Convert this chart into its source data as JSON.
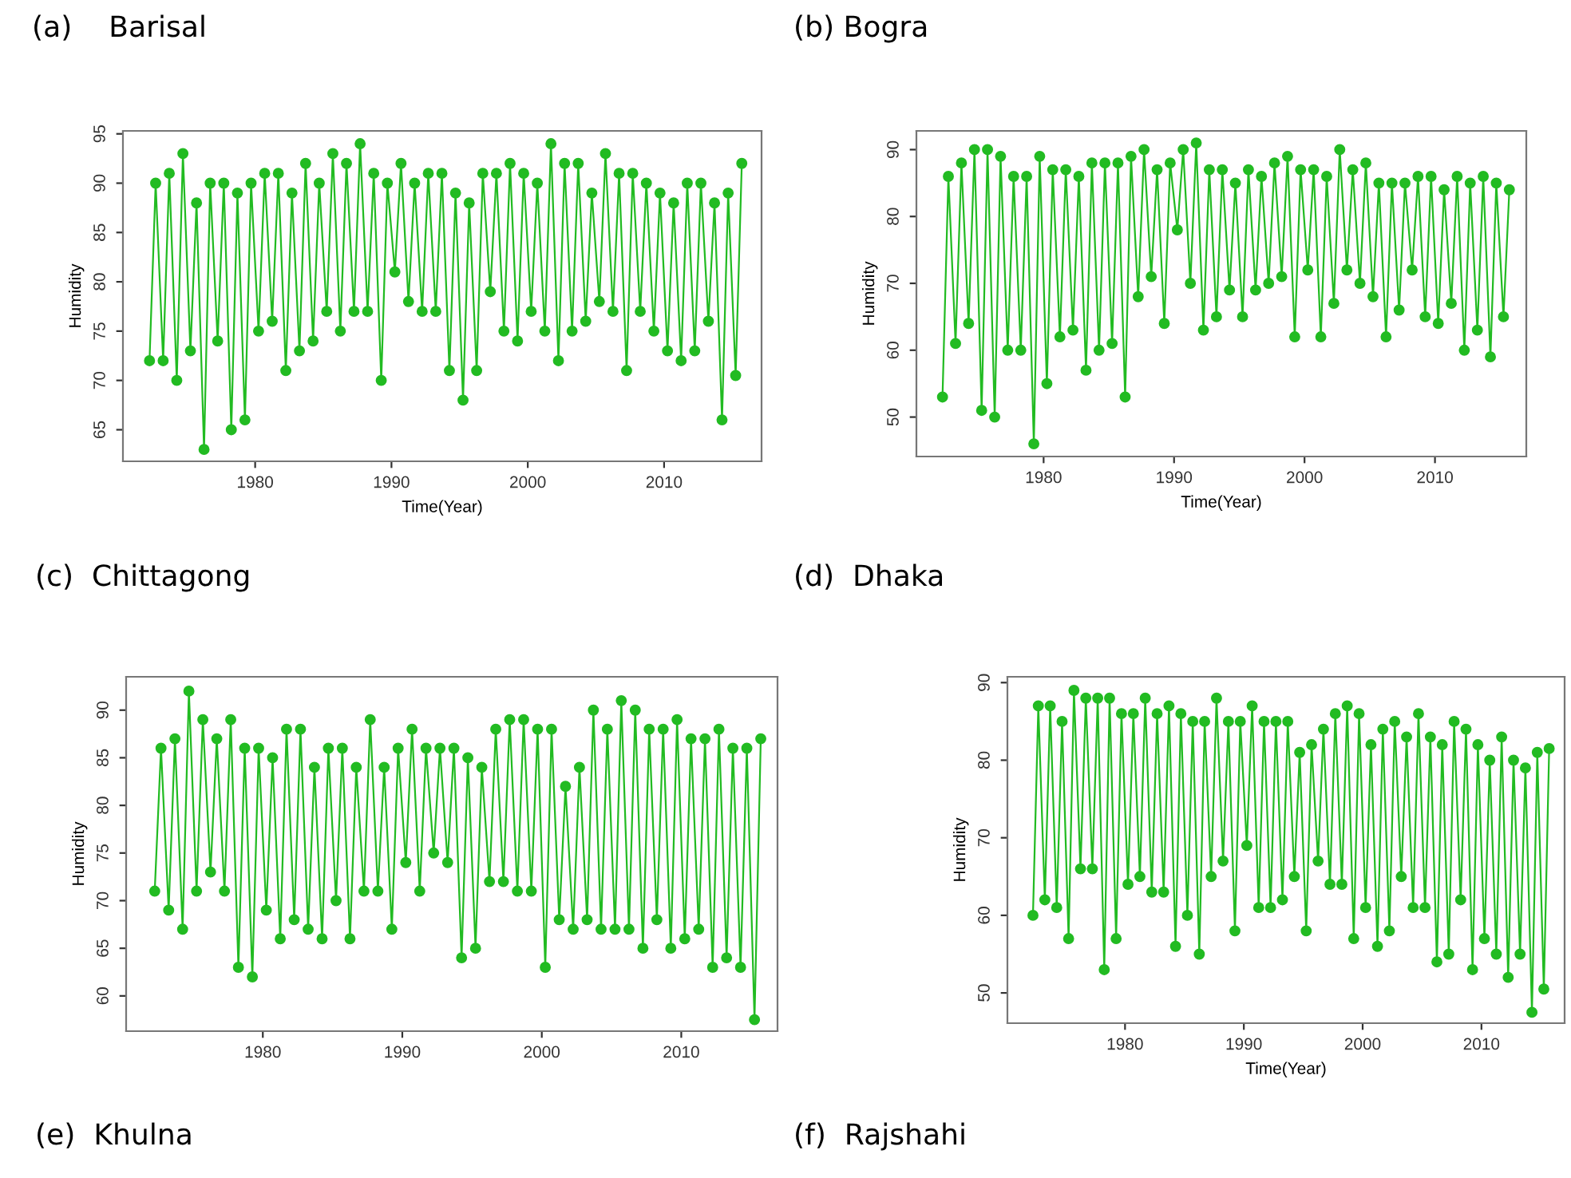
{
  "chart_data": [
    {
      "type": "line",
      "title": "(a)    Barisal",
      "xlabel": "Time(Year)",
      "ylabel": "Humidity",
      "color": "#22bb22",
      "marker": "circle",
      "xlim": [
        1970.3,
        2017.15
      ],
      "ylim": [
        61.8,
        95.3
      ],
      "xticks": [
        1980,
        1990,
        2000,
        2010
      ],
      "yticks": [
        65,
        70,
        75,
        80,
        85,
        90,
        95
      ],
      "x": [
        1972.25,
        1972.7,
        1973.25,
        1973.7,
        1974.25,
        1974.7,
        1975.25,
        1975.7,
        1976.25,
        1976.7,
        1977.25,
        1977.7,
        1978.25,
        1978.7,
        1979.25,
        1979.7,
        1980.25,
        1980.7,
        1981.25,
        1981.7,
        1982.25,
        1982.7,
        1983.25,
        1983.7,
        1984.25,
        1984.7,
        1985.25,
        1985.7,
        1986.25,
        1986.7,
        1987.25,
        1987.7,
        1988.25,
        1988.7,
        1989.25,
        1989.7,
        1990.25,
        1990.7,
        1991.25,
        1991.7,
        1992.25,
        1992.7,
        1993.25,
        1993.7,
        1994.25,
        1994.7,
        1995.25,
        1995.7,
        1996.25,
        1996.7,
        1997.25,
        1997.7,
        1998.25,
        1998.7,
        1999.25,
        1999.7,
        2000.25,
        2000.7,
        2001.25,
        2001.7,
        2002.25,
        2002.7,
        2003.25,
        2003.7,
        2004.25,
        2004.7,
        2005.25,
        2005.7,
        2006.25,
        2006.7,
        2007.25,
        2007.7,
        2008.25,
        2008.7,
        2009.25,
        2009.7,
        2010.25,
        2010.7,
        2011.25,
        2011.7,
        2012.25,
        2012.7,
        2013.25,
        2013.7,
        2014.25,
        2014.7,
        2015.25,
        2015.7
      ],
      "values": [
        72,
        90,
        72,
        91,
        70,
        93,
        73,
        88,
        63,
        90,
        74,
        90,
        65,
        89,
        66,
        90,
        75,
        91,
        76,
        91,
        71,
        89,
        73,
        92,
        74,
        90,
        77,
        93,
        75,
        92,
        77,
        94,
        77,
        91,
        70,
        90,
        81,
        92,
        78,
        90,
        77,
        91,
        77,
        91,
        71,
        89,
        68,
        88,
        71,
        91,
        79,
        91,
        75,
        92,
        74,
        91,
        77,
        90,
        75,
        94,
        72,
        92,
        75,
        92,
        76,
        89,
        78,
        93,
        77,
        91,
        71,
        91,
        77,
        90,
        75,
        89,
        73,
        88,
        72,
        90,
        73,
        90,
        76,
        88,
        66,
        89,
        70.5,
        92
      ]
    },
    {
      "type": "line",
      "title": "(b) Bogra",
      "xlabel": "Time(Year)",
      "ylabel": "Humidity",
      "color": "#22bb22",
      "marker": "circle",
      "xlim": [
        1970.25,
        2017.0
      ],
      "ylim": [
        44.1,
        92.8
      ],
      "xticks": [
        1980,
        1990,
        2000,
        2010
      ],
      "yticks": [
        50,
        60,
        70,
        80,
        90
      ],
      "x": [
        1972.25,
        1972.7,
        1973.25,
        1973.7,
        1974.25,
        1974.7,
        1975.25,
        1975.7,
        1976.25,
        1976.7,
        1977.25,
        1977.7,
        1978.25,
        1978.7,
        1979.25,
        1979.7,
        1980.25,
        1980.7,
        1981.25,
        1981.7,
        1982.25,
        1982.7,
        1983.25,
        1983.7,
        1984.25,
        1984.7,
        1985.25,
        1985.7,
        1986.25,
        1986.7,
        1987.25,
        1987.7,
        1988.25,
        1988.7,
        1989.25,
        1989.7,
        1990.25,
        1990.7,
        1991.25,
        1991.7,
        1992.25,
        1992.7,
        1993.25,
        1993.7,
        1994.25,
        1994.7,
        1995.25,
        1995.7,
        1996.25,
        1996.7,
        1997.25,
        1997.7,
        1998.25,
        1998.7,
        1999.25,
        1999.7,
        2000.25,
        2000.7,
        2001.25,
        2001.7,
        2002.25,
        2002.7,
        2003.25,
        2003.7,
        2004.25,
        2004.7,
        2005.25,
        2005.7,
        2006.25,
        2006.7,
        2007.25,
        2007.7,
        2008.25,
        2008.7,
        2009.25,
        2009.7,
        2010.25,
        2010.7,
        2011.25,
        2011.7,
        2012.25,
        2012.7,
        2013.25,
        2013.7,
        2014.25,
        2014.7,
        2015.25,
        2015.7
      ],
      "values": [
        53,
        86,
        61,
        88,
        64,
        90,
        51,
        90,
        50,
        89,
        60,
        86,
        60,
        86,
        46,
        89,
        55,
        87,
        62,
        87,
        63,
        86,
        57,
        88,
        60,
        88,
        61,
        88,
        53,
        89,
        68,
        90,
        71,
        87,
        64,
        88,
        78,
        90,
        70,
        91,
        63,
        87,
        65,
        87,
        69,
        85,
        65,
        87,
        69,
        86,
        70,
        88,
        71,
        89,
        62,
        87,
        72,
        87,
        62,
        86,
        67,
        90,
        72,
        87,
        70,
        88,
        68,
        85,
        62,
        85,
        66,
        85,
        72,
        86,
        65,
        86,
        64,
        84,
        67,
        86,
        60,
        85,
        63,
        86,
        59,
        85,
        65,
        84
      ]
    },
    {
      "type": "line",
      "title": "(c)  Chittagong",
      "ylabel": "Humidity",
      "color": "#22bb22",
      "marker": "circle",
      "xlim": [
        1970.2,
        2016.9
      ],
      "ylim": [
        56.3,
        93.5
      ],
      "xticks": [
        1980,
        1990,
        2000,
        2010
      ],
      "yticks": [
        60,
        65,
        70,
        75,
        80,
        85,
        90
      ],
      "annotations": [
        "(e)  Khulna"
      ],
      "x": [
        1972.25,
        1972.7,
        1973.25,
        1973.7,
        1974.25,
        1974.7,
        1975.25,
        1975.7,
        1976.25,
        1976.7,
        1977.25,
        1977.7,
        1978.25,
        1978.7,
        1979.25,
        1979.7,
        1980.25,
        1980.7,
        1981.25,
        1981.7,
        1982.25,
        1982.7,
        1983.25,
        1983.7,
        1984.25,
        1984.7,
        1985.25,
        1985.7,
        1986.25,
        1986.7,
        1987.25,
        1987.7,
        1988.25,
        1988.7,
        1989.25,
        1989.7,
        1990.25,
        1990.7,
        1991.25,
        1991.7,
        1992.25,
        1992.7,
        1993.25,
        1993.7,
        1994.25,
        1994.7,
        1995.25,
        1995.7,
        1996.25,
        1996.7,
        1997.25,
        1997.7,
        1998.25,
        1998.7,
        1999.25,
        1999.7,
        2000.25,
        2000.7,
        2001.25,
        2001.7,
        2002.25,
        2002.7,
        2003.25,
        2003.7,
        2004.25,
        2004.7,
        2005.25,
        2005.7,
        2006.25,
        2006.7,
        2007.25,
        2007.7,
        2008.25,
        2008.7,
        2009.25,
        2009.7,
        2010.25,
        2010.7,
        2011.25,
        2011.7,
        2012.25,
        2012.7,
        2013.25,
        2013.7,
        2014.25,
        2014.7,
        2015.25,
        2015.7
      ],
      "values": [
        71,
        86,
        69,
        87,
        67,
        92,
        71,
        89,
        73,
        87,
        71,
        89,
        63,
        86,
        62,
        86,
        69,
        85,
        66,
        88,
        68,
        88,
        67,
        84,
        66,
        86,
        70,
        86,
        66,
        84,
        71,
        89,
        71,
        84,
        67,
        86,
        74,
        88,
        71,
        86,
        75,
        86,
        74,
        86,
        64,
        85,
        65,
        84,
        72,
        88,
        72,
        89,
        71,
        89,
        71,
        88,
        63,
        88,
        68,
        82,
        67,
        84,
        68,
        90,
        67,
        88,
        67,
        91,
        67,
        90,
        65,
        88,
        68,
        88,
        65,
        89,
        66,
        87,
        67,
        87,
        63,
        88,
        64,
        86,
        63,
        86,
        57.5,
        87
      ]
    },
    {
      "type": "line",
      "title": "(d)  Dhaka",
      "xlabel": "Time(Year)",
      "ylabel": "Humidity",
      "color": "#22bb22",
      "marker": "circle",
      "xlim": [
        1970.1,
        2017.0
      ],
      "ylim": [
        46.1,
        90.75
      ],
      "xticks": [
        1980,
        1990,
        2000,
        2010
      ],
      "yticks": [
        50,
        60,
        70,
        80,
        90
      ],
      "annotations": [
        "(f)  Rajshahi"
      ],
      "x": [
        1972.25,
        1972.7,
        1973.25,
        1973.7,
        1974.25,
        1974.7,
        1975.25,
        1975.7,
        1976.25,
        1976.7,
        1977.25,
        1977.7,
        1978.25,
        1978.7,
        1979.25,
        1979.7,
        1980.25,
        1980.7,
        1981.25,
        1981.7,
        1982.25,
        1982.7,
        1983.25,
        1983.7,
        1984.25,
        1984.7,
        1985.25,
        1985.7,
        1986.25,
        1986.7,
        1987.25,
        1987.7,
        1988.25,
        1988.7,
        1989.25,
        1989.7,
        1990.25,
        1990.7,
        1991.25,
        1991.7,
        1992.25,
        1992.7,
        1993.25,
        1993.7,
        1994.25,
        1994.7,
        1995.25,
        1995.7,
        1996.25,
        1996.7,
        1997.25,
        1997.7,
        1998.25,
        1998.7,
        1999.25,
        1999.7,
        2000.25,
        2000.7,
        2001.25,
        2001.7,
        2002.25,
        2002.7,
        2003.25,
        2003.7,
        2004.25,
        2004.7,
        2005.25,
        2005.7,
        2006.25,
        2006.7,
        2007.25,
        2007.7,
        2008.25,
        2008.7,
        2009.25,
        2009.7,
        2010.25,
        2010.7,
        2011.25,
        2011.7,
        2012.25,
        2012.7,
        2013.25,
        2013.7,
        2014.25,
        2014.7,
        2015.25,
        2015.7
      ],
      "values": [
        60,
        87,
        62,
        87,
        61,
        85,
        57,
        89,
        66,
        88,
        66,
        88,
        53,
        88,
        57,
        86,
        64,
        86,
        65,
        88,
        63,
        86,
        63,
        87,
        56,
        86,
        60,
        85,
        55,
        85,
        65,
        88,
        67,
        85,
        58,
        85,
        69,
        87,
        61,
        85,
        61,
        85,
        62,
        85,
        65,
        81,
        58,
        82,
        67,
        84,
        64,
        86,
        64,
        87,
        57,
        86,
        61,
        82,
        56,
        84,
        58,
        85,
        65,
        83,
        61,
        86,
        61,
        83,
        54,
        82,
        55,
        85,
        62,
        84,
        53,
        82,
        57,
        80,
        55,
        83,
        52,
        80,
        55,
        79,
        47.5,
        81,
        50.5,
        81.5
      ]
    }
  ]
}
